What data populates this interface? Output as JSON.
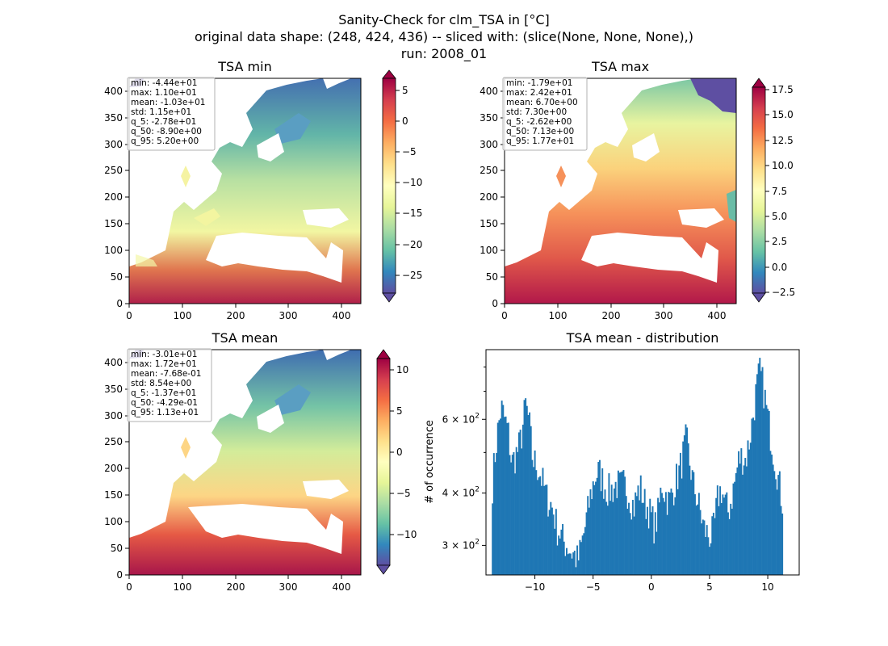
{
  "figure": {
    "title_lines": [
      "Sanity-Check for clm_TSA in [°C]",
      "original data shape: (248, 424, 436) -- sliced with: (slice(None, None, None),)",
      "run: 2008_01"
    ]
  },
  "chart_data": [
    {
      "type": "heatmap",
      "title": "TSA min",
      "xlim": [
        0,
        436
      ],
      "ylim": [
        0,
        424
      ],
      "x_ticks": [
        0,
        100,
        200,
        300,
        400
      ],
      "y_ticks": [
        0,
        50,
        100,
        150,
        200,
        250,
        300,
        350,
        400
      ],
      "colorbar": {
        "colormap": "Spectral_r",
        "ticks": [
          "5",
          "0",
          "−5",
          "−10",
          "−15",
          "−20",
          "−25"
        ],
        "range": [
          -28,
          5
        ]
      },
      "stats": [
        "min: -4.44e+01",
        "max: 1.10e+01",
        "mean: -1.03e+01",
        "std: 1.15e+01",
        "q_5: -2.78e+01",
        "q_50: -8.90e+00",
        "q_95: 5.20e+00"
      ]
    },
    {
      "type": "heatmap",
      "title": "TSA max",
      "xlim": [
        0,
        436
      ],
      "ylim": [
        0,
        424
      ],
      "x_ticks": [
        0,
        100,
        200,
        300,
        400
      ],
      "y_ticks": [
        0,
        50,
        100,
        150,
        200,
        250,
        300,
        350,
        400
      ],
      "colorbar": {
        "colormap": "Spectral_r",
        "ticks": [
          "17.5",
          "15.0",
          "12.5",
          "10.0",
          "7.5",
          "5.0",
          "2.5",
          "0.0",
          "−2.5"
        ],
        "range": [
          -2.5,
          17.7
        ]
      },
      "stats": [
        "min: -1.79e+01",
        "max: 2.42e+01",
        "mean: 6.70e+00",
        "std: 7.30e+00",
        "q_5: -2.62e+00",
        "q_50: 7.13e+00",
        "q_95: 1.77e+01"
      ]
    },
    {
      "type": "heatmap",
      "title": "TSA mean",
      "xlim": [
        0,
        436
      ],
      "ylim": [
        0,
        424
      ],
      "x_ticks": [
        0,
        100,
        200,
        300,
        400
      ],
      "y_ticks": [
        0,
        50,
        100,
        150,
        200,
        250,
        300,
        350,
        400
      ],
      "colorbar": {
        "colormap": "Spectral_r",
        "ticks": [
          "10",
          "5",
          "0",
          "−5",
          "−10"
        ],
        "range": [
          -13.7,
          11.3
        ]
      },
      "stats": [
        "min: -3.01e+01",
        "max: 1.72e+01",
        "mean: -7.68e-01",
        "std: 8.54e+00",
        "q_5: -1.37e+01",
        "q_50: -4.29e-01",
        "q_95: 1.13e+01"
      ]
    },
    {
      "type": "bar",
      "title": "TSA mean - distribution",
      "ylabel": "# of occurrence",
      "y_scale": "log",
      "xlim": [
        -14.2,
        12.7
      ],
      "ylim": [
        255,
        880
      ],
      "x_ticks": [
        -10,
        -5,
        0,
        5,
        10
      ],
      "x_tick_labels": [
        "−10",
        "−5",
        "0",
        "5",
        "10"
      ],
      "y_ticks": [
        300,
        400,
        600
      ],
      "y_tick_bases": [
        "3",
        "4",
        "6"
      ],
      "y_tick_mult": "× 10",
      "y_tick_exp": "2",
      "bar_color": "#1f77b4",
      "bin_range": [
        -13.7,
        11.3
      ],
      "anchors": [
        [
          -13.7,
          400
        ],
        [
          -13.5,
          470
        ],
        [
          -13.2,
          560
        ],
        [
          -12.9,
          640
        ],
        [
          -12.6,
          600
        ],
        [
          -12.3,
          560
        ],
        [
          -12.0,
          470
        ],
        [
          -11.7,
          490
        ],
        [
          -11.4,
          510
        ],
        [
          -11.1,
          560
        ],
        [
          -10.8,
          650
        ],
        [
          -10.5,
          590
        ],
        [
          -10.2,
          480
        ],
        [
          -9.9,
          470
        ],
        [
          -9.6,
          450
        ],
        [
          -9.3,
          420
        ],
        [
          -9.0,
          390
        ],
        [
          -8.7,
          380
        ],
        [
          -8.4,
          360
        ],
        [
          -8.1,
          330
        ],
        [
          -7.8,
          320
        ],
        [
          -7.5,
          305
        ],
        [
          -7.2,
          300
        ],
        [
          -6.9,
          290
        ],
        [
          -6.6,
          285
        ],
        [
          -6.3,
          275
        ],
        [
          -6.0,
          300
        ],
        [
          -5.7,
          330
        ],
        [
          -5.4,
          370
        ],
        [
          -5.1,
          410
        ],
        [
          -4.8,
          440
        ],
        [
          -4.5,
          450
        ],
        [
          -4.2,
          430
        ],
        [
          -3.9,
          410
        ],
        [
          -3.6,
          405
        ],
        [
          -3.3,
          410
        ],
        [
          -3.0,
          420
        ],
        [
          -2.7,
          415
        ],
        [
          -2.4,
          420
        ],
        [
          -2.1,
          410
        ],
        [
          -1.8,
          390
        ],
        [
          -1.5,
          370
        ],
        [
          -1.2,
          400
        ],
        [
          -0.9,
          410
        ],
        [
          -0.6,
          380
        ],
        [
          -0.3,
          370
        ],
        [
          0.0,
          350
        ],
        [
          0.3,
          330
        ],
        [
          0.6,
          360
        ],
        [
          0.9,
          420
        ],
        [
          1.2,
          400
        ],
        [
          1.5,
          380
        ],
        [
          1.8,
          400
        ],
        [
          2.1,
          430
        ],
        [
          2.4,
          450
        ],
        [
          2.7,
          490
        ],
        [
          3.0,
          540
        ],
        [
          3.3,
          470
        ],
        [
          3.6,
          420
        ],
        [
          3.9,
          390
        ],
        [
          4.2,
          360
        ],
        [
          4.5,
          330
        ],
        [
          4.8,
          320
        ],
        [
          5.1,
          315
        ],
        [
          5.4,
          330
        ],
        [
          5.7,
          390
        ],
        [
          6.0,
          410
        ],
        [
          6.3,
          380
        ],
        [
          6.6,
          360
        ],
        [
          6.9,
          390
        ],
        [
          7.2,
          430
        ],
        [
          7.5,
          480
        ],
        [
          7.8,
          490
        ],
        [
          8.1,
          480
        ],
        [
          8.4,
          530
        ],
        [
          8.7,
          600
        ],
        [
          9.0,
          700
        ],
        [
          9.3,
          780
        ],
        [
          9.6,
          720
        ],
        [
          9.9,
          630
        ],
        [
          10.2,
          560
        ],
        [
          10.5,
          500
        ],
        [
          10.8,
          450
        ],
        [
          11.1,
          400
        ],
        [
          11.3,
          380
        ]
      ]
    }
  ]
}
